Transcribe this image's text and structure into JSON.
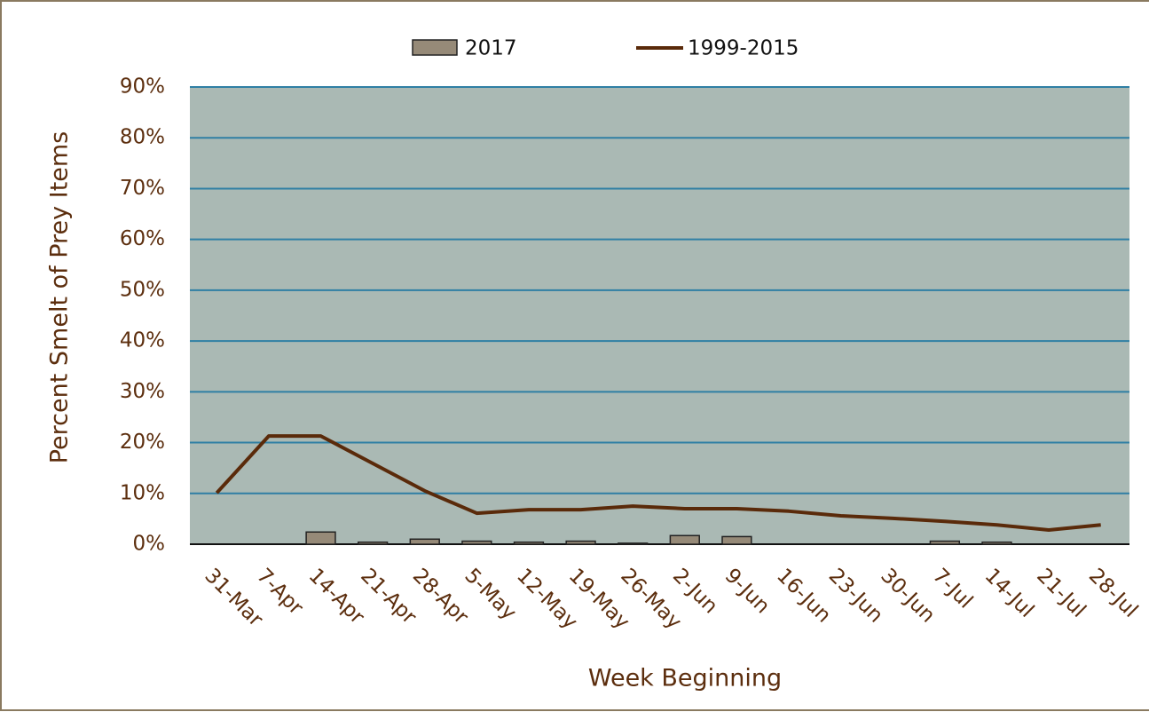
{
  "chart_data": {
    "type": "bar+line",
    "x_label": "Week Beginning",
    "y_label": "Percent Smelt of Prey Items",
    "categories": [
      "31-Mar",
      "7-Apr",
      "14-Apr",
      "21-Apr",
      "28-Apr",
      "5-May",
      "12-May",
      "19-May",
      "26-May",
      "2-Jun",
      "9-Jun",
      "16-Jun",
      "23-Jun",
      "30-Jun",
      "7-Jul",
      "14-Jul",
      "21-Jul",
      "28-Jul"
    ],
    "series": [
      {
        "name": "2017",
        "type": "bar",
        "color": "#968a78",
        "values": [
          0,
          0,
          2.4,
          0.4,
          1.0,
          0.6,
          0.4,
          0.6,
          0.2,
          1.7,
          1.5,
          0,
          0,
          0,
          0.6,
          0.4,
          0,
          0
        ]
      },
      {
        "name": "1999-2015",
        "type": "line",
        "color": "#5a2a0a",
        "values": [
          10.1,
          21.3,
          21.3,
          15.9,
          10.5,
          6.1,
          6.8,
          6.8,
          7.5,
          7.0,
          7.0,
          6.5,
          5.6,
          5.1,
          4.5,
          3.8,
          2.8,
          3.8
        ]
      }
    ],
    "ylim": [
      0,
      90
    ],
    "yticks": [
      {
        "value": 0,
        "label": "0%"
      },
      {
        "value": 10,
        "label": "10%"
      },
      {
        "value": 20,
        "label": "20%"
      },
      {
        "value": 30,
        "label": "30%"
      },
      {
        "value": 40,
        "label": "40%"
      },
      {
        "value": 50,
        "label": "50%"
      },
      {
        "value": 60,
        "label": "60%"
      },
      {
        "value": 70,
        "label": "70%"
      },
      {
        "value": 80,
        "label": "80%"
      },
      {
        "value": 90,
        "label": "90%"
      }
    ],
    "grid": true,
    "legend": "top"
  }
}
